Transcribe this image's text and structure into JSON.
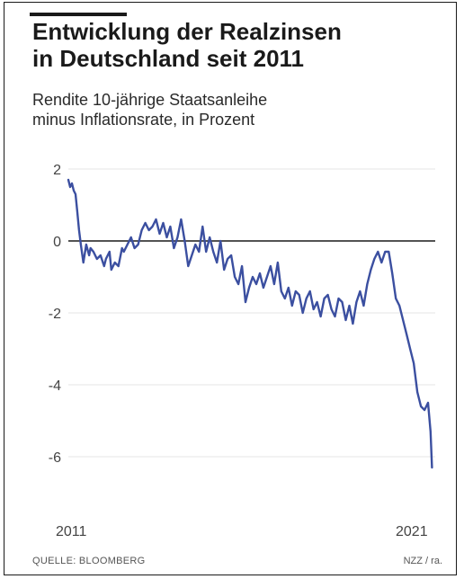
{
  "title_lines": [
    "Entwicklung der Realzinsen",
    "in Deutschland seit 2011"
  ],
  "subtitle_lines": [
    "Rendite 10-jährige Staatsanleihe",
    "minus Inflationsrate, in Prozent"
  ],
  "source": "QUELLE: BLOOMBERG",
  "credit": "NZZ / ra.",
  "colors": {
    "line": "#3b4fa0",
    "zero_line": "#1a1a1a",
    "grid": "#e6e6e6",
    "text": "#1a1a1a"
  },
  "chart_data": {
    "type": "line",
    "title": "Entwicklung der Realzinsen in Deutschland seit 2011",
    "subtitle": "Rendite 10-jährige Staatsanleihe minus Inflationsrate, in Prozent",
    "xlabel": "",
    "ylabel": "",
    "xlim": [
      2011.0,
      2021.25
    ],
    "ylim": [
      -7,
      2
    ],
    "yticks": [
      2,
      0,
      -2,
      -4,
      -6
    ],
    "ytick_labels": [
      "2",
      "0",
      "-2",
      "-4",
      "-6"
    ],
    "xtick_labels": [
      {
        "value": 2011,
        "label": "2011"
      },
      {
        "value": 2021,
        "label": "2021"
      }
    ],
    "grid": true,
    "reference_line": 0,
    "series": [
      {
        "x": [
          2011.0,
          2011.05,
          2011.1,
          2011.15,
          2011.2,
          2011.25,
          2011.3,
          2011.35,
          2011.42,
          2011.5,
          2011.58,
          2011.62,
          2011.7,
          2011.8,
          2011.9,
          2012.0,
          2012.05,
          2012.15,
          2012.2,
          2012.3,
          2012.4,
          2012.5,
          2012.55,
          2012.65,
          2012.75,
          2012.85,
          2012.95,
          2013.05,
          2013.15,
          2013.25,
          2013.35,
          2013.45,
          2013.55,
          2013.65,
          2013.75,
          2013.85,
          2013.95,
          2014.05,
          2014.15,
          2014.25,
          2014.35,
          2014.45,
          2014.55,
          2014.65,
          2014.75,
          2014.85,
          2014.95,
          2015.05,
          2015.15,
          2015.25,
          2015.35,
          2015.45,
          2015.55,
          2015.65,
          2015.75,
          2015.85,
          2015.95,
          2016.05,
          2016.15,
          2016.25,
          2016.35,
          2016.45,
          2016.55,
          2016.65,
          2016.75,
          2016.85,
          2016.95,
          2017.05,
          2017.15,
          2017.25,
          2017.35,
          2017.45,
          2017.55,
          2017.65,
          2017.75,
          2017.85,
          2017.95,
          2018.05,
          2018.15,
          2018.25,
          2018.35,
          2018.45,
          2018.55,
          2018.65,
          2018.75,
          2018.85,
          2018.95,
          2019.05,
          2019.15,
          2019.25,
          2019.35,
          2019.45,
          2019.55,
          2019.65,
          2019.75,
          2019.85,
          2019.95,
          2020.05,
          2020.15,
          2020.25,
          2020.35,
          2020.45,
          2020.55,
          2020.65,
          2020.75,
          2020.85,
          2020.95,
          2021.05,
          2021.12,
          2021.16
        ],
        "values": [
          1.7,
          1.5,
          1.6,
          1.4,
          1.3,
          0.8,
          0.3,
          -0.1,
          -0.6,
          -0.1,
          -0.4,
          -0.2,
          -0.3,
          -0.5,
          -0.4,
          -0.7,
          -0.5,
          -0.3,
          -0.8,
          -0.6,
          -0.7,
          -0.2,
          -0.3,
          -0.1,
          0.1,
          -0.2,
          -0.1,
          0.3,
          0.5,
          0.3,
          0.4,
          0.6,
          0.2,
          0.5,
          0.1,
          0.4,
          -0.2,
          0.1,
          0.6,
          0.0,
          -0.7,
          -0.4,
          -0.1,
          -0.3,
          0.4,
          -0.3,
          0.1,
          -0.3,
          -0.6,
          0.0,
          -0.8,
          -0.5,
          -0.4,
          -1.0,
          -1.2,
          -0.7,
          -1.7,
          -1.3,
          -1.0,
          -1.2,
          -0.9,
          -1.3,
          -1.0,
          -0.7,
          -1.2,
          -0.6,
          -1.4,
          -1.6,
          -1.3,
          -1.8,
          -1.4,
          -1.5,
          -2.0,
          -1.6,
          -1.4,
          -1.9,
          -1.7,
          -2.1,
          -1.6,
          -1.5,
          -1.9,
          -2.1,
          -1.6,
          -1.7,
          -2.2,
          -1.8,
          -2.3,
          -1.7,
          -1.4,
          -1.8,
          -1.2,
          -0.8,
          -0.5,
          -0.3,
          -0.6,
          -0.3,
          -0.3,
          -0.9,
          -1.6,
          -1.8,
          -2.2,
          -2.6,
          -3.0,
          -3.4,
          -4.2,
          -4.6,
          -4.7,
          -4.5,
          -5.3,
          -6.3
        ]
      }
    ]
  }
}
